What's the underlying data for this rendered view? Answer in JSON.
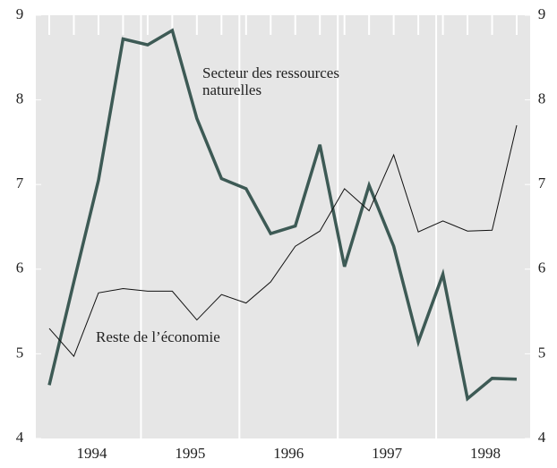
{
  "chart_data": {
    "type": "line",
    "x": [
      1993.75,
      1994.0,
      1994.25,
      1994.5,
      1994.75,
      1995.0,
      1995.25,
      1995.5,
      1995.75,
      1996.0,
      1996.25,
      1996.5,
      1996.75,
      1997.0,
      1997.25,
      1997.5,
      1997.75,
      1998.0,
      1998.25,
      1998.5
    ],
    "series": [
      {
        "name": "Secteur des ressources naturelles",
        "color": "#3d5a55",
        "width": 3.5,
        "values": [
          4.63,
          5.85,
          7.05,
          8.72,
          8.65,
          8.82,
          7.78,
          7.07,
          6.95,
          6.42,
          6.51,
          7.47,
          6.03,
          6.99,
          6.27,
          5.14,
          5.94,
          4.47,
          4.71,
          4.7
        ]
      },
      {
        "name": "Reste de l'économie",
        "color": "#111111",
        "width": 1,
        "values": [
          5.3,
          4.97,
          5.72,
          5.77,
          5.74,
          5.74,
          5.4,
          5.7,
          5.6,
          5.85,
          6.27,
          6.45,
          6.95,
          6.69,
          7.35,
          6.44,
          6.57,
          6.45,
          6.46,
          7.7
        ]
      }
    ],
    "annotations": [
      "Secteur des ressources",
      "naturelles",
      "Reste de l’économie"
    ],
    "xlim": [
      1993.75,
      1998.5
    ],
    "xticks": [
      1994,
      1995,
      1996,
      1997,
      1998
    ],
    "ylim": [
      4,
      9
    ],
    "yticks": [
      4,
      5,
      6,
      7,
      8,
      9
    ],
    "y2lim": [
      4,
      9
    ],
    "y2ticks": [
      4,
      5,
      6,
      7,
      8,
      9
    ],
    "background": "#e6e6e6"
  }
}
